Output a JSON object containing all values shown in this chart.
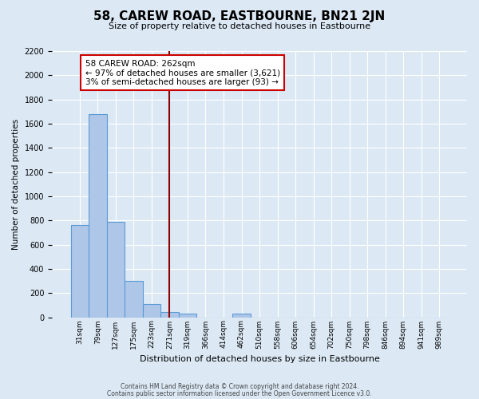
{
  "title": "58, CAREW ROAD, EASTBOURNE, BN21 2JN",
  "subtitle": "Size of property relative to detached houses in Eastbourne",
  "xlabel": "Distribution of detached houses by size in Eastbourne",
  "ylabel": "Number of detached properties",
  "bin_labels": [
    "31sqm",
    "79sqm",
    "127sqm",
    "175sqm",
    "223sqm",
    "271sqm",
    "319sqm",
    "366sqm",
    "414sqm",
    "462sqm",
    "510sqm",
    "558sqm",
    "606sqm",
    "654sqm",
    "702sqm",
    "750sqm",
    "798sqm",
    "846sqm",
    "894sqm",
    "941sqm",
    "989sqm"
  ],
  "bar_heights": [
    760,
    1680,
    790,
    300,
    110,
    45,
    30,
    0,
    0,
    30,
    0,
    0,
    0,
    0,
    0,
    0,
    0,
    0,
    0,
    0,
    0
  ],
  "bar_color": "#aec6e8",
  "bar_edge_color": "#5b9bd5",
  "vline_x": 5,
  "vline_color": "#8b0000",
  "annotation_title": "58 CAREW ROAD: 262sqm",
  "annotation_line1": "← 97% of detached houses are smaller (3,621)",
  "annotation_line2": "3% of semi-detached houses are larger (93) →",
  "annotation_box_color": "#ffffff",
  "annotation_box_edge": "#cc0000",
  "ylim": [
    0,
    2200
  ],
  "yticks": [
    0,
    200,
    400,
    600,
    800,
    1000,
    1200,
    1400,
    1600,
    1800,
    2000,
    2200
  ],
  "footer_line1": "Contains HM Land Registry data © Crown copyright and database right 2024.",
  "footer_line2": "Contains public sector information licensed under the Open Government Licence v3.0.",
  "background_color": "#dce9f5",
  "plot_bg_color": "#dce9f5",
  "grid_color": "#ffffff"
}
